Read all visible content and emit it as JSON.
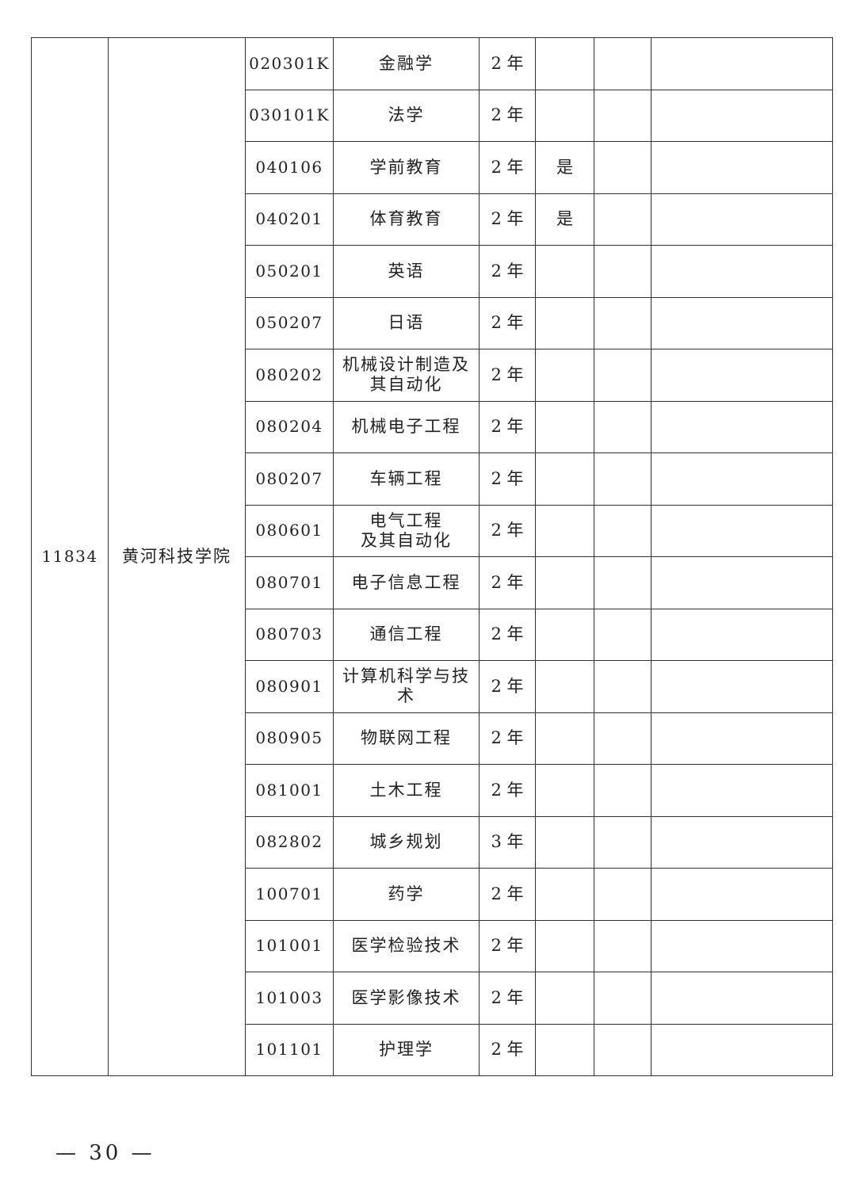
{
  "institution_code": "11834",
  "institution_name": "黄河科技学院",
  "rows": [
    {
      "code": "020301K",
      "major": "金融学",
      "years": "2 年",
      "flag": ""
    },
    {
      "code": "030101K",
      "major": "法学",
      "years": "2 年",
      "flag": ""
    },
    {
      "code": "040106",
      "major": "学前教育",
      "years": "2 年",
      "flag": "是"
    },
    {
      "code": "040201",
      "major": "体育教育",
      "years": "2 年",
      "flag": "是"
    },
    {
      "code": "050201",
      "major": "英语",
      "years": "2 年",
      "flag": ""
    },
    {
      "code": "050207",
      "major": "日语",
      "years": "2 年",
      "flag": ""
    },
    {
      "code": "080202",
      "major": "机械设计制造及\n其自动化",
      "years": "2 年",
      "flag": ""
    },
    {
      "code": "080204",
      "major": "机械电子工程",
      "years": "2 年",
      "flag": ""
    },
    {
      "code": "080207",
      "major": "车辆工程",
      "years": "2 年",
      "flag": ""
    },
    {
      "code": "080601",
      "major": "电气工程\n及其自动化",
      "years": "2 年",
      "flag": ""
    },
    {
      "code": "080701",
      "major": "电子信息工程",
      "years": "2 年",
      "flag": ""
    },
    {
      "code": "080703",
      "major": "通信工程",
      "years": "2 年",
      "flag": ""
    },
    {
      "code": "080901",
      "major": "计算机科学与技术",
      "years": "2 年",
      "flag": ""
    },
    {
      "code": "080905",
      "major": "物联网工程",
      "years": "2 年",
      "flag": ""
    },
    {
      "code": "081001",
      "major": "土木工程",
      "years": "2 年",
      "flag": ""
    },
    {
      "code": "082802",
      "major": "城乡规划",
      "years": "3 年",
      "flag": ""
    },
    {
      "code": "100701",
      "major": "药学",
      "years": "2 年",
      "flag": ""
    },
    {
      "code": "101001",
      "major": "医学检验技术",
      "years": "2 年",
      "flag": ""
    },
    {
      "code": "101003",
      "major": "医学影像技术",
      "years": "2 年",
      "flag": ""
    },
    {
      "code": "101101",
      "major": "护理学",
      "years": "2 年",
      "flag": ""
    }
  ],
  "page_number": "— 30 —"
}
